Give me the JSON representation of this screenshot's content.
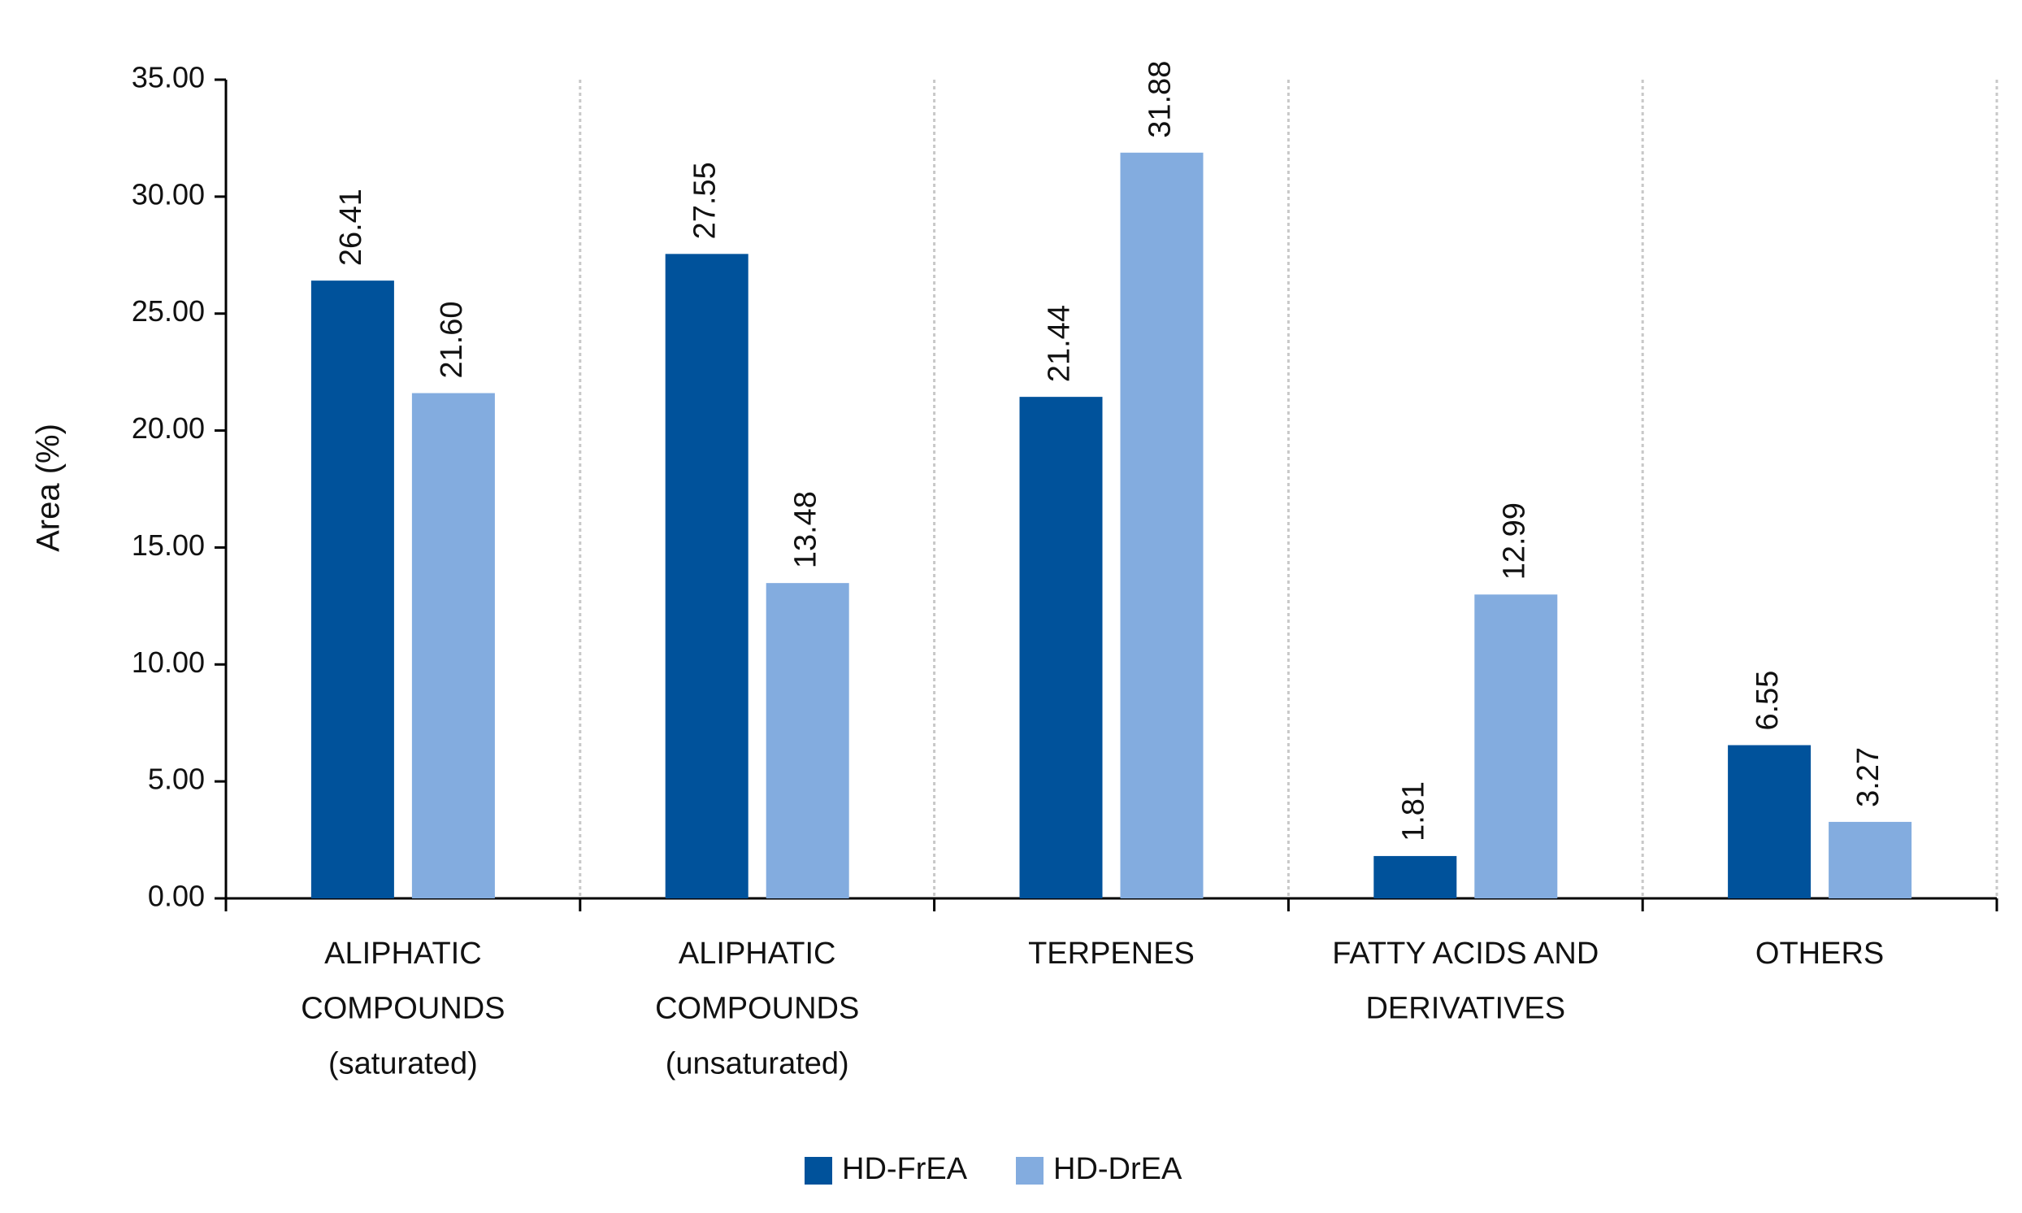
{
  "chart_data": {
    "type": "bar",
    "y_label": "Area (%)",
    "categories": [
      "ALIPHATIC\nCOMPOUNDS\n(saturated)",
      "ALIPHATIC\nCOMPOUNDS\n(unsaturated)",
      "TERPENES",
      "FATTY ACIDS AND\nDERIVATIVES",
      "OTHERS"
    ],
    "series": [
      {
        "name": "HD-FrEA",
        "color": "#00529b",
        "values": [
          26.41,
          27.55,
          21.44,
          1.81,
          6.55
        ],
        "value_labels": [
          "26.41",
          "27.55",
          "21.44",
          "1.81",
          "6.55"
        ]
      },
      {
        "name": "HD-DrEA",
        "color": "#83acdf",
        "values": [
          21.6,
          13.48,
          31.88,
          12.99,
          3.27
        ],
        "value_labels": [
          "21.60",
          "13.48",
          "31.88",
          "12.99",
          "3.27"
        ]
      }
    ],
    "ylim": [
      0,
      35
    ],
    "yticks": [
      {
        "value": 0,
        "label": "0.00"
      },
      {
        "value": 5,
        "label": "5.00"
      },
      {
        "value": 10,
        "label": "10.00"
      },
      {
        "value": 15,
        "label": "15.00"
      },
      {
        "value": 20,
        "label": "20.00"
      },
      {
        "value": 25,
        "label": "25.00"
      },
      {
        "value": 30,
        "label": "30.00"
      },
      {
        "value": 35,
        "label": "35.00"
      }
    ]
  }
}
